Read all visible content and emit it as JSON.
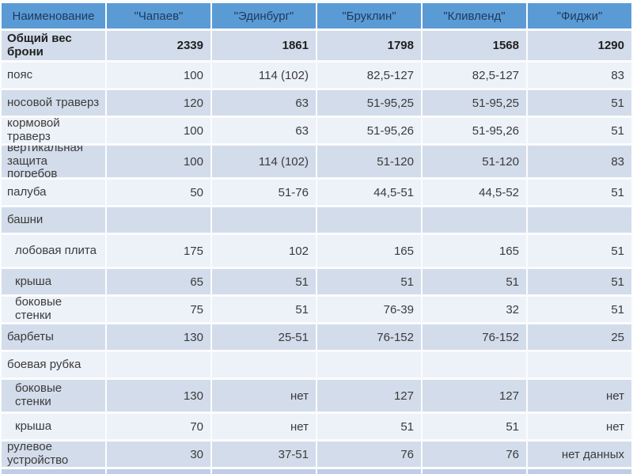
{
  "chart_data": {
    "type": "table",
    "title": "",
    "columns": [
      "Наименование",
      "\"Чапаев\"",
      "\"Эдинбург\"",
      "\"Бруклин\"",
      "\"Кливленд\"",
      "\"Фиджи\""
    ],
    "rows": [
      {
        "name": "Общий вес брони",
        "values": [
          "2339",
          "1861",
          "1798",
          "1568",
          "1290"
        ],
        "band": "dark",
        "bold": true,
        "indent": false,
        "tall": false
      },
      {
        "name": "пояс",
        "values": [
          "100",
          "114 (102)",
          "82,5-127",
          "82,5-127",
          "83"
        ],
        "band": "light",
        "bold": false,
        "indent": false,
        "tall": false
      },
      {
        "name": "носовой траверз",
        "values": [
          "120",
          "63",
          "51-95,25",
          "51-95,25",
          "51"
        ],
        "band": "dark",
        "bold": false,
        "indent": false,
        "tall": false
      },
      {
        "name": "кормовой траверз",
        "values": [
          "100",
          "63",
          "51-95,26",
          "51-95,26",
          "51"
        ],
        "band": "light",
        "bold": false,
        "indent": false,
        "tall": false
      },
      {
        "name": "вертикальная защита погребов",
        "values": [
          "100",
          "114 (102)",
          "51-120",
          "51-120",
          "83"
        ],
        "band": "dark",
        "bold": false,
        "indent": false,
        "tall": true
      },
      {
        "name": "палуба",
        "values": [
          "50",
          "51-76",
          "44,5-51",
          "44,5-52",
          "51"
        ],
        "band": "light",
        "bold": false,
        "indent": false,
        "tall": false
      },
      {
        "name": "башни",
        "values": [
          "",
          "",
          "",
          "",
          ""
        ],
        "band": "dark",
        "bold": false,
        "indent": false,
        "tall": false
      },
      {
        "name": "лобовая плита",
        "values": [
          "175",
          "102",
          "165",
          "165",
          "51"
        ],
        "band": "light",
        "bold": false,
        "indent": true,
        "tall": true
      },
      {
        "name": "крыша",
        "values": [
          "65",
          "51",
          "51",
          "51",
          "51"
        ],
        "band": "dark",
        "bold": false,
        "indent": true,
        "tall": false
      },
      {
        "name": "боковые стенки",
        "values": [
          "75",
          "51",
          "76-39",
          "32",
          "51"
        ],
        "band": "light",
        "bold": false,
        "indent": true,
        "tall": false
      },
      {
        "name": "барбеты",
        "values": [
          "130",
          "25-51",
          "76-152",
          "76-152",
          "25"
        ],
        "band": "dark",
        "bold": false,
        "indent": false,
        "tall": false
      },
      {
        "name": "боевая рубка",
        "values": [
          "",
          "",
          "",
          "",
          ""
        ],
        "band": "light",
        "bold": false,
        "indent": false,
        "tall": false
      },
      {
        "name": "боковые стенки",
        "values": [
          "130",
          "нет",
          "127",
          "127",
          "нет"
        ],
        "band": "dark",
        "bold": false,
        "indent": true,
        "tall": true
      },
      {
        "name": "крыша",
        "values": [
          "70",
          "нет",
          "51",
          "51",
          "нет"
        ],
        "band": "light",
        "bold": false,
        "indent": true,
        "tall": false
      },
      {
        "name": "рулевое устройство",
        "values": [
          "30",
          "37-51",
          "76",
          "76",
          "нет данных"
        ],
        "band": "dark",
        "bold": false,
        "indent": false,
        "tall": false
      }
    ],
    "layout": {
      "legend": "none",
      "grid": "cell-gaps-white",
      "value_alignment": "right",
      "header_alignment": "center"
    },
    "colors": {
      "header_bg": "#5b9bd5",
      "header_text": "#1d3a5c",
      "band_dark": "#d3dcea",
      "band_light": "#edf1f8",
      "text": "#3b3b3b",
      "total_text": "#1f1f1f",
      "partial_bg": "#bfcde6",
      "gap": "#fbfcfe"
    }
  }
}
